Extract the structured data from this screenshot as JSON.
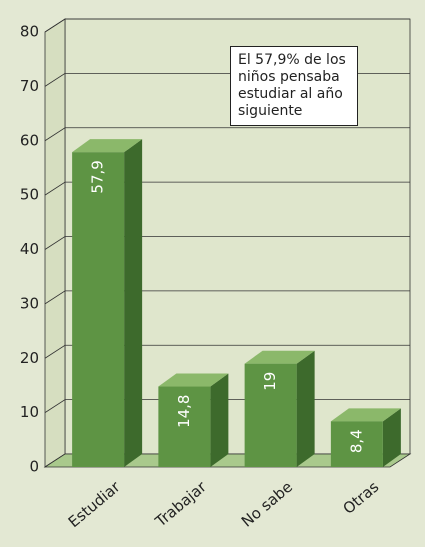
{
  "chart_data": {
    "type": "bar3d",
    "categories": [
      "Estudiar",
      "Trabajar",
      "No sabe",
      "Otras"
    ],
    "values": [
      57.9,
      14.8,
      19,
      8.4
    ],
    "value_labels": [
      "57,9",
      "14,8",
      "19",
      "8,4"
    ],
    "color": "#5e9444",
    "ylim": [
      0,
      80
    ],
    "yticks": [
      0,
      10,
      20,
      30,
      40,
      50,
      60,
      70,
      80
    ],
    "grid": true,
    "annotation": "El 57,9% de los niños pensaba estudiar al año siguiente"
  }
}
